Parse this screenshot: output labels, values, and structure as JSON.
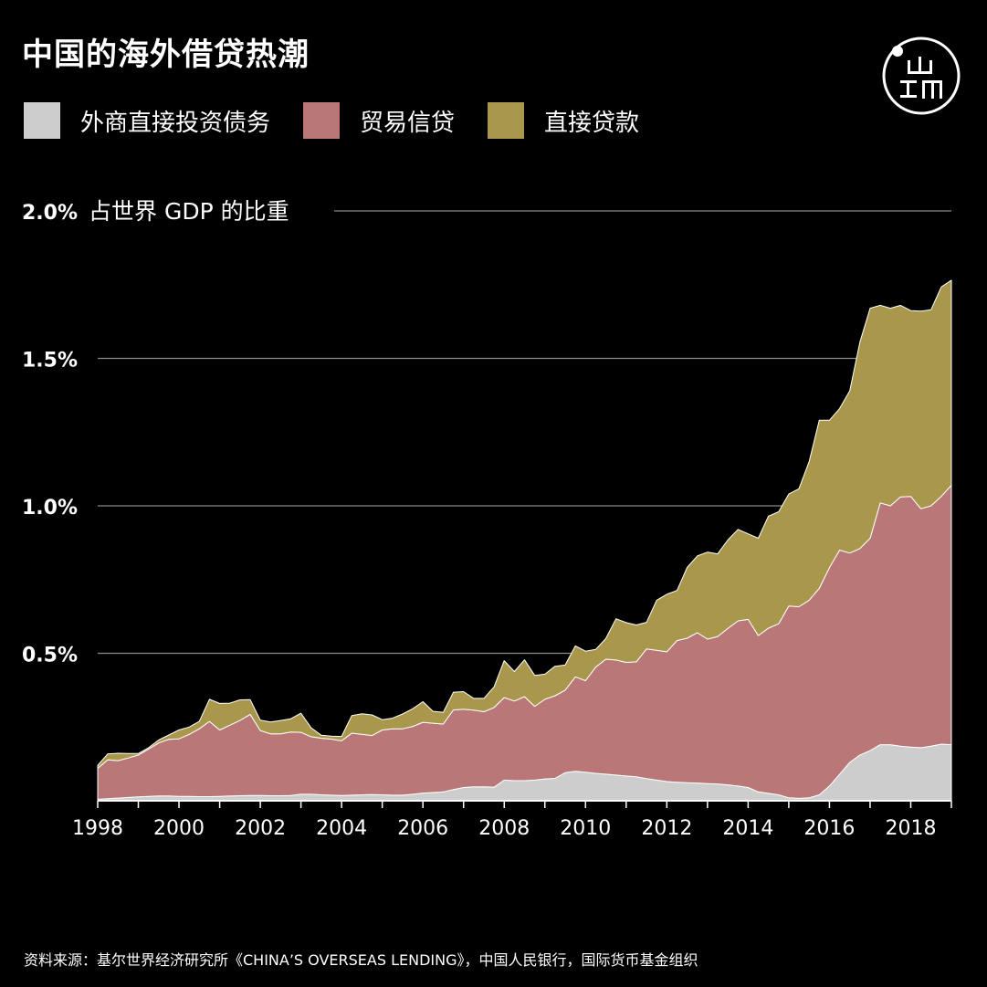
{
  "title": "中国的海外借贷热潮",
  "source": "资料来源：基尔世界经济研究所《CHINA’S OVERSEAS LENDING》，中国人民银行，国际货币基金组织",
  "logo_icon": "theinitium-logo-icon",
  "colors": {
    "background": "#000000",
    "portfolio": "#cdcdcd",
    "trade": "#b97777",
    "loans": "#a9974c",
    "grid": "#8a8a8a"
  },
  "legend": [
    {
      "label": "外商直接投资债务",
      "color": "#cdcdcd"
    },
    {
      "label": "贸易信贷",
      "color": "#b97777"
    },
    {
      "label": "直接贷款",
      "color": "#a9974c"
    }
  ],
  "chart_data": {
    "type": "area",
    "stacked": true,
    "ylabel": "占世界 GDP 的比重",
    "ylim": [
      0,
      2.0
    ],
    "yticks": [
      {
        "value": 0.5,
        "label": "0.5%"
      },
      {
        "value": 1.0,
        "label": "1.0%"
      },
      {
        "value": 1.5,
        "label": "1.5%"
      },
      {
        "value": 2.0,
        "label": "2.0%"
      }
    ],
    "xlim": [
      1998,
      2019
    ],
    "xticks": [
      "1998",
      "2000",
      "2002",
      "2004",
      "2006",
      "2008",
      "2010",
      "2012",
      "2014",
      "2016",
      "2018"
    ],
    "x": [
      1998.0,
      1998.25,
      1998.5,
      1998.75,
      1999.0,
      1999.25,
      1999.5,
      1999.75,
      2000.0,
      2000.25,
      2000.5,
      2000.75,
      2001.0,
      2001.25,
      2001.5,
      2001.75,
      2002.0,
      2002.25,
      2002.5,
      2002.75,
      2003.0,
      2003.25,
      2003.5,
      2003.75,
      2004.0,
      2004.25,
      2004.5,
      2004.75,
      2005.0,
      2005.25,
      2005.5,
      2005.75,
      2006.0,
      2006.25,
      2006.5,
      2006.75,
      2007.0,
      2007.25,
      2007.5,
      2007.75,
      2008.0,
      2008.25,
      2008.5,
      2008.75,
      2009.0,
      2009.25,
      2009.5,
      2009.75,
      2010.0,
      2010.25,
      2010.5,
      2010.75,
      2011.0,
      2011.25,
      2011.5,
      2011.75,
      2012.0,
      2012.25,
      2012.5,
      2012.75,
      2013.0,
      2013.25,
      2013.5,
      2013.75,
      2014.0,
      2014.25,
      2014.5,
      2014.75,
      2015.0,
      2015.25,
      2015.5,
      2015.75,
      2016.0,
      2016.25,
      2016.5,
      2016.75,
      2017.0,
      2017.25,
      2017.5,
      2017.75,
      2018.0,
      2018.25,
      2018.5,
      2018.75,
      2019.0
    ],
    "series": [
      {
        "name": "外商直接投资债务",
        "values": [
          0.005,
          0.007,
          0.009,
          0.011,
          0.013,
          0.015,
          0.016,
          0.016,
          0.015,
          0.015,
          0.014,
          0.014,
          0.015,
          0.016,
          0.017,
          0.018,
          0.018,
          0.017,
          0.017,
          0.018,
          0.022,
          0.022,
          0.02,
          0.019,
          0.018,
          0.019,
          0.02,
          0.021,
          0.02,
          0.019,
          0.019,
          0.022,
          0.026,
          0.028,
          0.03,
          0.038,
          0.045,
          0.047,
          0.047,
          0.046,
          0.07,
          0.068,
          0.068,
          0.07,
          0.074,
          0.076,
          0.095,
          0.1,
          0.097,
          0.093,
          0.09,
          0.087,
          0.084,
          0.081,
          0.075,
          0.07,
          0.065,
          0.063,
          0.061,
          0.06,
          0.058,
          0.057,
          0.054,
          0.05,
          0.045,
          0.03,
          0.025,
          0.02,
          0.01,
          0.008,
          0.01,
          0.02,
          0.05,
          0.09,
          0.13,
          0.155,
          0.17,
          0.19,
          0.19,
          0.185,
          0.182,
          0.18,
          0.185,
          0.192,
          0.19
        ]
      },
      {
        "name": "贸易信贷",
        "values": [
          0.105,
          0.132,
          0.127,
          0.134,
          0.142,
          0.16,
          0.18,
          0.192,
          0.195,
          0.21,
          0.23,
          0.255,
          0.225,
          0.24,
          0.255,
          0.275,
          0.22,
          0.21,
          0.21,
          0.215,
          0.21,
          0.195,
          0.192,
          0.19,
          0.185,
          0.21,
          0.205,
          0.2,
          0.22,
          0.225,
          0.225,
          0.23,
          0.24,
          0.235,
          0.23,
          0.27,
          0.265,
          0.26,
          0.255,
          0.27,
          0.28,
          0.27,
          0.285,
          0.25,
          0.27,
          0.28,
          0.28,
          0.32,
          0.31,
          0.36,
          0.39,
          0.39,
          0.385,
          0.39,
          0.44,
          0.44,
          0.44,
          0.48,
          0.49,
          0.51,
          0.49,
          0.5,
          0.53,
          0.56,
          0.57,
          0.53,
          0.56,
          0.58,
          0.65,
          0.65,
          0.67,
          0.7,
          0.74,
          0.76,
          0.71,
          0.7,
          0.72,
          0.82,
          0.81,
          0.845,
          0.85,
          0.81,
          0.815,
          0.84,
          0.88
        ]
      },
      {
        "name": "直接贷款",
        "values": [
          0.01,
          0.02,
          0.025,
          0.015,
          0.005,
          0.005,
          0.01,
          0.015,
          0.03,
          0.025,
          0.025,
          0.075,
          0.09,
          0.075,
          0.07,
          0.05,
          0.035,
          0.04,
          0.045,
          0.045,
          0.065,
          0.03,
          0.01,
          0.01,
          0.015,
          0.06,
          0.07,
          0.07,
          0.035,
          0.036,
          0.05,
          0.06,
          0.07,
          0.04,
          0.04,
          0.06,
          0.06,
          0.04,
          0.045,
          0.07,
          0.125,
          0.1,
          0.125,
          0.105,
          0.085,
          0.1,
          0.085,
          0.105,
          0.1,
          0.06,
          0.07,
          0.14,
          0.135,
          0.125,
          0.09,
          0.17,
          0.195,
          0.17,
          0.24,
          0.26,
          0.295,
          0.28,
          0.3,
          0.31,
          0.29,
          0.33,
          0.38,
          0.38,
          0.38,
          0.4,
          0.47,
          0.57,
          0.5,
          0.48,
          0.55,
          0.7,
          0.78,
          0.67,
          0.67,
          0.65,
          0.63,
          0.67,
          0.665,
          0.71,
          0.695
        ]
      }
    ]
  }
}
